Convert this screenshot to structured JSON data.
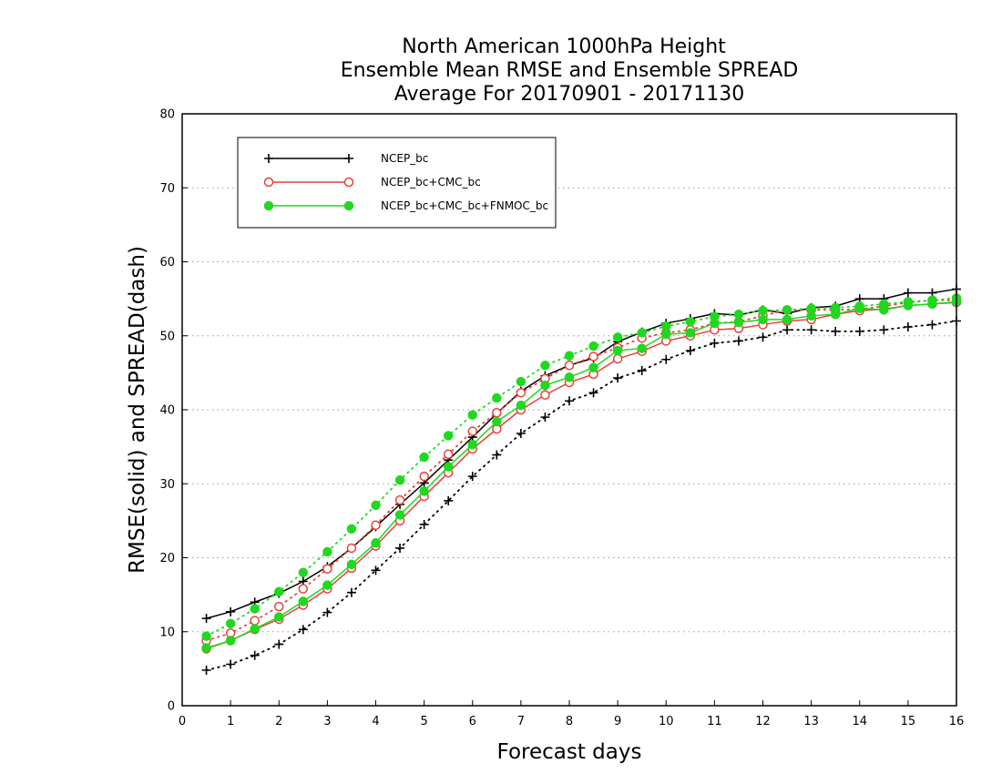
{
  "chart_data": {
    "type": "line",
    "title_lines": [
      "North American 1000hPa Height",
      "Ensemble Mean RMSE and Ensemble SPREAD",
      "Average For 20170901 - 20171130"
    ],
    "xlabel": "Forecast days",
    "ylabel": "RMSE(solid) and SPREAD(dash)",
    "xlim": [
      0,
      16
    ],
    "ylim": [
      0,
      80
    ],
    "xticks": [
      "0",
      "1",
      "2",
      "3",
      "4",
      "5",
      "6",
      "7",
      "8",
      "9",
      "10",
      "11",
      "12",
      "13",
      "14",
      "15",
      "16"
    ],
    "yticks": [
      "0",
      "10",
      "20",
      "30",
      "40",
      "50",
      "60",
      "70",
      "80"
    ],
    "grid": "horizontal dotted",
    "legend_position": "top-left",
    "x": [
      0.5,
      1,
      1.5,
      2,
      2.5,
      3,
      3.5,
      4,
      4.5,
      5,
      5.5,
      6,
      6.5,
      7,
      7.5,
      8,
      8.5,
      9,
      9.5,
      10,
      10.5,
      11,
      11.5,
      12,
      12.5,
      13,
      13.5,
      14,
      14.5,
      15,
      15.5,
      16
    ],
    "series": [
      {
        "name": "NCEP_bc",
        "color": "#000000",
        "marker": "plus",
        "rmse": [
          11.8,
          12.7,
          14.0,
          15.2,
          16.8,
          18.8,
          21.3,
          24.2,
          27.2,
          30.1,
          33.2,
          36.3,
          39.5,
          42.5,
          44.6,
          46.0,
          47.0,
          49.2,
          50.5,
          51.7,
          52.3,
          53.0,
          52.8,
          53.5,
          53.0,
          53.8,
          54.0,
          55.0,
          55.0,
          55.8,
          55.8,
          56.3
        ],
        "spread": [
          4.8,
          5.6,
          6.8,
          8.3,
          10.3,
          12.6,
          15.3,
          18.3,
          21.3,
          24.5,
          27.7,
          31.0,
          33.9,
          36.8,
          39.0,
          41.2,
          42.3,
          44.3,
          45.3,
          46.8,
          48.0,
          49.0,
          49.3,
          49.8,
          50.8,
          50.8,
          50.6,
          50.6,
          50.8,
          51.2,
          51.5,
          52.0
        ]
      },
      {
        "name": "NCEP_bc+CMC_bc",
        "color": "#e8413a",
        "marker": "circle-open",
        "rmse": [
          7.7,
          8.8,
          10.3,
          11.7,
          13.6,
          15.8,
          18.6,
          21.6,
          25.0,
          28.3,
          31.5,
          34.7,
          37.4,
          40.0,
          42.0,
          43.7,
          44.8,
          46.9,
          47.9,
          49.3,
          50.0,
          50.8,
          51.0,
          51.5,
          52.0,
          52.2,
          52.9,
          53.4,
          53.6,
          54.1,
          54.3,
          54.5
        ],
        "spread": [
          8.8,
          9.8,
          11.5,
          13.4,
          15.8,
          18.5,
          21.3,
          24.4,
          27.8,
          31.0,
          34.0,
          37.1,
          39.6,
          42.3,
          44.2,
          46.0,
          47.2,
          48.4,
          49.7,
          50.4,
          50.8,
          51.7,
          51.9,
          52.7,
          53.5,
          53.5,
          53.5,
          53.6,
          54.0,
          54.5,
          54.8,
          54.8
        ]
      },
      {
        "name": "NCEP_bc+CMC_bc+FNMOC_bc",
        "color": "#1fd81f",
        "marker": "circle-filled",
        "rmse": [
          7.8,
          8.8,
          10.4,
          12.0,
          14.1,
          16.3,
          19.1,
          22.0,
          25.8,
          29.0,
          32.3,
          35.3,
          38.4,
          40.6,
          43.3,
          44.4,
          45.7,
          48.0,
          48.3,
          50.2,
          50.4,
          51.7,
          51.8,
          52.2,
          52.2,
          52.7,
          52.9,
          53.7,
          53.5,
          54.1,
          54.3,
          54.6
        ],
        "spread": [
          9.4,
          11.1,
          13.1,
          15.4,
          18.0,
          20.8,
          23.9,
          27.1,
          30.5,
          33.6,
          36.5,
          39.3,
          41.6,
          43.8,
          46.0,
          47.3,
          48.6,
          49.8,
          50.4,
          51.3,
          51.9,
          52.6,
          52.9,
          53.4,
          53.5,
          53.7,
          53.8,
          54.0,
          54.3,
          54.6,
          54.8,
          55.1
        ]
      }
    ]
  }
}
